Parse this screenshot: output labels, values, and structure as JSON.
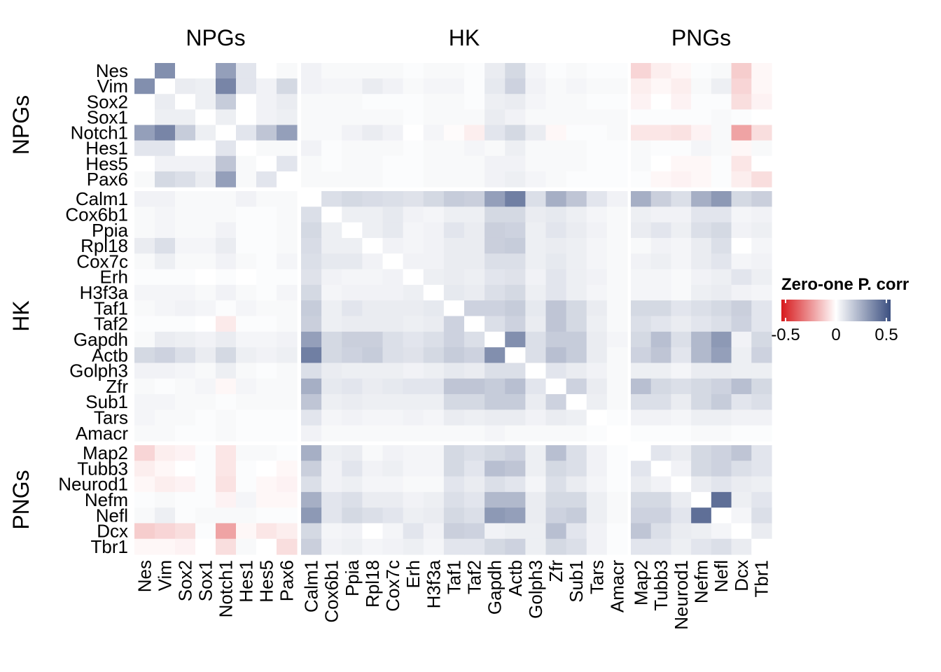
{
  "chart_data": {
    "type": "heatmap",
    "title": "",
    "group_labels": [
      "NPGs",
      "HK",
      "PNGs"
    ],
    "groups": [
      {
        "name": "NPGs",
        "genes": [
          "Nes",
          "Vim",
          "Sox2",
          "Sox1",
          "Notch1",
          "Hes1",
          "Hes5",
          "Pax6"
        ]
      },
      {
        "name": "HK",
        "genes": [
          "Calm1",
          "Cox6b1",
          "Ppia",
          "Rpl18",
          "Cox7c",
          "Erh",
          "H3f3a",
          "Taf1",
          "Taf2",
          "Gapdh",
          "Actb",
          "Golph3",
          "Zfr",
          "Sub1",
          "Tars",
          "Amacr"
        ]
      },
      {
        "name": "PNGs",
        "genes": [
          "Map2",
          "Tubb3",
          "Neurod1",
          "Nefm",
          "Nefl",
          "Dcx",
          "Tbr1"
        ]
      }
    ],
    "legend": {
      "title": "Zero-one P. corr",
      "ticks": [
        "-0.5",
        "0",
        "0.5"
      ],
      "range": [
        -0.55,
        0.55
      ],
      "colors": {
        "low": "#d7191c",
        "mid": "#ffffff",
        "high": "#3b4f80"
      }
    },
    "values": [
      [
        0,
        0.35,
        0,
        0,
        0.3,
        0.08,
        0,
        0.02,
        0.04,
        0.02,
        0.02,
        0.02,
        0.02,
        0.01,
        0.02,
        0.02,
        0.01,
        0.06,
        0.12,
        0.03,
        0.01,
        0.02,
        0.01,
        0.01,
        -0.1,
        -0.04,
        -0.02,
        0.01,
        0.02,
        -0.12,
        -0.02
      ],
      [
        0.35,
        0,
        0.06,
        0.05,
        0.38,
        0.08,
        0.04,
        0.12,
        0.04,
        0.03,
        0.03,
        0.06,
        0.04,
        0.02,
        0.03,
        0.03,
        0.01,
        0.07,
        0.14,
        0.04,
        0.02,
        0.03,
        0.02,
        0.02,
        -0.04,
        -0.02,
        -0.04,
        0.02,
        0.05,
        -0.1,
        -0.02
      ],
      [
        0,
        0.06,
        0,
        0.05,
        0.16,
        0,
        0.04,
        0.06,
        0.02,
        0.02,
        0.02,
        0.01,
        0.01,
        0.01,
        0.02,
        0.02,
        0.01,
        0.05,
        0.06,
        0.03,
        0.02,
        0.02,
        0.01,
        0.01,
        -0.03,
        0,
        -0.03,
        0.01,
        0.01,
        -0.08,
        -0.03
      ],
      [
        0,
        0.05,
        0.05,
        0,
        0.05,
        0,
        0.04,
        0.05,
        0.02,
        0.02,
        0.02,
        0.02,
        0.02,
        0.01,
        0.02,
        0.02,
        0.02,
        0.06,
        0.04,
        0.02,
        0.02,
        0.02,
        0.02,
        0.02,
        0.01,
        0.01,
        0.01,
        0.01,
        0.02,
        0.01,
        0
      ],
      [
        0.3,
        0.38,
        0.16,
        0.05,
        0,
        0.08,
        0.18,
        0.3,
        0.02,
        0.02,
        0.04,
        0.06,
        0.04,
        0,
        0.03,
        -0.01,
        -0.04,
        0.08,
        0.12,
        0.06,
        -0.02,
        0.01,
        0.01,
        0.02,
        -0.06,
        -0.06,
        -0.07,
        -0.03,
        0.02,
        -0.22,
        -0.08
      ],
      [
        0.08,
        0.08,
        0,
        0,
        0.08,
        0,
        0.02,
        0.02,
        0.04,
        0.01,
        0.02,
        0.02,
        0.02,
        0.01,
        0.02,
        0.02,
        0.03,
        0.02,
        0.05,
        0.02,
        0.02,
        0.02,
        0.01,
        0.01,
        0.02,
        0.01,
        0.01,
        0.03,
        0.02,
        -0.02,
        0.02
      ],
      [
        0,
        0.04,
        0.04,
        0.04,
        0.18,
        0.02,
        0,
        0.08,
        0.02,
        0.01,
        0.02,
        0.02,
        0.01,
        0.01,
        0.02,
        0.02,
        0.02,
        0.04,
        0.04,
        0.02,
        0.02,
        0.02,
        0.01,
        0.01,
        0.02,
        0,
        -0.02,
        -0.02,
        0.01,
        -0.06,
        0
      ],
      [
        0.02,
        0.12,
        0.1,
        0.06,
        0.3,
        0.02,
        0.08,
        0,
        0.02,
        0.02,
        0.02,
        0.02,
        0.01,
        0.01,
        0.02,
        0.02,
        0.02,
        0.04,
        0.05,
        0.03,
        0.02,
        0.01,
        0.01,
        0.01,
        0.01,
        -0.02,
        -0.03,
        -0.02,
        0.01,
        -0.04,
        -0.08
      ],
      [
        0.04,
        0.04,
        0.02,
        0.02,
        0.02,
        0.04,
        0.02,
        0.02,
        0,
        0.1,
        0.12,
        0.11,
        0.1,
        0.09,
        0.12,
        0.16,
        0.15,
        0.3,
        0.4,
        0.1,
        0.25,
        0.18,
        0.08,
        0.04,
        0.25,
        0.15,
        0.1,
        0.25,
        0.32,
        0.12,
        0.15
      ],
      [
        0.02,
        0.03,
        0.02,
        0.02,
        0.02,
        0.01,
        0.01,
        0.02,
        0.1,
        0,
        0.05,
        0.05,
        0.07,
        0.04,
        0.03,
        0.05,
        0.05,
        0.12,
        0.12,
        0.06,
        0.07,
        0.05,
        0.03,
        0.02,
        0.05,
        0.04,
        0.04,
        0.08,
        0.08,
        0.03,
        0.04
      ],
      [
        0.02,
        0.03,
        0.02,
        0.02,
        0.04,
        0.01,
        0.01,
        0.02,
        0.12,
        0.05,
        0,
        0.05,
        0.07,
        0.03,
        0.04,
        0.08,
        0.06,
        0.15,
        0.14,
        0.05,
        0.08,
        0.06,
        0.04,
        0.02,
        0.06,
        0.08,
        0.05,
        0.1,
        0.12,
        0.04,
        0.05
      ],
      [
        0.06,
        0.1,
        0.03,
        0.03,
        0.06,
        0.01,
        0.01,
        0.02,
        0.11,
        0.05,
        0.05,
        0,
        0.04,
        0.03,
        0.04,
        0.06,
        0.06,
        0.15,
        0.16,
        0.05,
        0.06,
        0.05,
        0.03,
        0.02,
        0.02,
        0.04,
        0.03,
        0.06,
        0.1,
        0,
        0.03
      ],
      [
        0.02,
        0.05,
        0.02,
        0.02,
        0.04,
        0.02,
        0.01,
        0.03,
        0.1,
        0.07,
        0.07,
        0.04,
        0,
        0.04,
        0.04,
        0.06,
        0.06,
        0.1,
        0.1,
        0.05,
        0.07,
        0.05,
        0.03,
        0.02,
        0.04,
        0.05,
        0.03,
        0.06,
        0.08,
        0.03,
        0.04
      ],
      [
        0.01,
        0.01,
        0.01,
        0,
        0.01,
        0,
        0.01,
        0.01,
        0.09,
        0.04,
        0.03,
        0.03,
        0.04,
        0,
        0.05,
        0.06,
        0.05,
        0.08,
        0.09,
        0.04,
        0.08,
        0.05,
        0.04,
        0.02,
        0.03,
        0.03,
        0.02,
        0.04,
        0.05,
        0.08,
        0.05
      ],
      [
        0.03,
        0.03,
        0.03,
        0.02,
        0.04,
        0.02,
        0.01,
        0.03,
        0.12,
        0.03,
        0.04,
        0.04,
        0.04,
        0.05,
        0,
        0.07,
        0.06,
        0.1,
        0.12,
        0.05,
        0.08,
        0.05,
        0.03,
        0.02,
        0.03,
        0.03,
        0.02,
        0.05,
        0.06,
        0.04,
        0.03
      ],
      [
        0.02,
        0.03,
        0.04,
        0.03,
        0.01,
        0.03,
        0.02,
        0.02,
        0.16,
        0.05,
        0.08,
        0.06,
        0.06,
        0.06,
        0.07,
        0,
        0.14,
        0.14,
        0.16,
        0.07,
        0.18,
        0.12,
        0.06,
        0.02,
        0.12,
        0.12,
        0.08,
        0.1,
        0.12,
        0.15,
        0.08
      ],
      [
        0.01,
        0.01,
        0.01,
        0,
        -0.05,
        0.01,
        0.01,
        0.02,
        0.15,
        0.05,
        0.06,
        0.06,
        0.06,
        0.05,
        0.06,
        0.14,
        0,
        0.1,
        0.14,
        0.06,
        0.18,
        0.12,
        0.05,
        0.02,
        0.1,
        0.08,
        0.06,
        0.08,
        0.1,
        0.14,
        0.08
      ],
      [
        0.02,
        0.06,
        0.05,
        0.04,
        0.06,
        0.03,
        0.03,
        0.04,
        0.3,
        0.12,
        0.15,
        0.15,
        0.1,
        0.08,
        0.1,
        0.14,
        0.1,
        0,
        0.35,
        0.1,
        0.16,
        0.16,
        0.06,
        0.03,
        0.12,
        0.2,
        0.1,
        0.22,
        0.32,
        0.04,
        0.12
      ],
      [
        0.12,
        0.14,
        0.1,
        0.06,
        0.12,
        0.05,
        0.04,
        0.05,
        0.4,
        0.12,
        0.14,
        0.16,
        0.1,
        0.09,
        0.12,
        0.16,
        0.14,
        0.35,
        0,
        0.1,
        0.2,
        0.16,
        0.06,
        0.02,
        0.14,
        0.18,
        0.08,
        0.22,
        0.3,
        0.05,
        0.14
      ],
      [
        0.04,
        0.04,
        0.03,
        0.02,
        0.05,
        0.02,
        0.01,
        0.02,
        0.1,
        0.06,
        0.05,
        0.05,
        0.05,
        0.04,
        0.05,
        0.07,
        0.06,
        0.1,
        0.1,
        0,
        0.08,
        0.06,
        0.04,
        0.02,
        0.05,
        0.05,
        0.03,
        0.06,
        0.06,
        0.05,
        0.05
      ],
      [
        0.02,
        0.01,
        0.02,
        0.03,
        -0.02,
        0.03,
        0.02,
        0.02,
        0.25,
        0.07,
        0.08,
        0.06,
        0.07,
        0.08,
        0.08,
        0.18,
        0.18,
        0.16,
        0.2,
        0.08,
        0,
        0.14,
        0.06,
        0.02,
        0.2,
        0.12,
        0.1,
        0.12,
        0.14,
        0.2,
        0.12
      ],
      [
        0.03,
        0.03,
        0.02,
        0.02,
        0.01,
        0.02,
        0.02,
        0.02,
        0.18,
        0.05,
        0.06,
        0.05,
        0.05,
        0.05,
        0.05,
        0.12,
        0.12,
        0.16,
        0.16,
        0.06,
        0.14,
        0,
        0.05,
        0.02,
        0.1,
        0.1,
        0.06,
        0.12,
        0.16,
        0.08,
        0.1
      ],
      [
        0.03,
        0.02,
        0.02,
        0.01,
        0.02,
        0.01,
        0.01,
        0.01,
        0.08,
        0.03,
        0.04,
        0.03,
        0.03,
        0.04,
        0.03,
        0.06,
        0.05,
        0.06,
        0.06,
        0.04,
        0.06,
        0.05,
        0,
        0.01,
        0.04,
        0.04,
        0.03,
        0.05,
        0.05,
        0.04,
        0.04
      ],
      [
        0.02,
        0.02,
        0.01,
        0.01,
        0.02,
        0.01,
        0.01,
        0.01,
        0.04,
        0.02,
        0.02,
        0.02,
        0.02,
        0.02,
        0.02,
        0.02,
        0.02,
        0.03,
        0.02,
        0.02,
        0.02,
        0.02,
        0.01,
        0,
        0.01,
        0.01,
        0.01,
        0.02,
        0.02,
        0.01,
        0.01
      ],
      [
        -0.1,
        -0.04,
        -0.03,
        0.01,
        -0.06,
        0.02,
        0.02,
        0.01,
        0.25,
        0.05,
        0.06,
        0.02,
        0.04,
        0.03,
        0.03,
        0.12,
        0.1,
        0.12,
        0.14,
        0.05,
        0.2,
        0.1,
        0.04,
        0.01,
        0,
        0.08,
        0.06,
        0.12,
        0.14,
        0.18,
        0.08
      ],
      [
        -0.04,
        -0.02,
        0,
        0.01,
        -0.06,
        0.01,
        0,
        -0.02,
        0.15,
        0.04,
        0.08,
        0.04,
        0.05,
        0.03,
        0.03,
        0.12,
        0.08,
        0.2,
        0.18,
        0.05,
        0.12,
        0.1,
        0.04,
        0.01,
        0.08,
        0,
        0.04,
        0.12,
        0.14,
        0.1,
        0.08
      ],
      [
        -0.02,
        -0.04,
        -0.03,
        0.01,
        -0.07,
        0.01,
        -0.02,
        -0.03,
        0.1,
        0.04,
        0.05,
        0.03,
        0.03,
        0.02,
        0.02,
        0.08,
        0.06,
        0.1,
        0.08,
        0.03,
        0.1,
        0.06,
        0.03,
        0.01,
        0.06,
        0.04,
        0,
        0.06,
        0.08,
        0.06,
        0.05
      ],
      [
        0.01,
        0.02,
        0.01,
        0.01,
        -0.03,
        0.03,
        -0.02,
        -0.02,
        0.25,
        0.08,
        0.1,
        0.06,
        0.06,
        0.04,
        0.05,
        0.1,
        0.08,
        0.22,
        0.22,
        0.06,
        0.12,
        0.12,
        0.05,
        0.02,
        0.12,
        0.12,
        0.06,
        0,
        0.45,
        0.05,
        0.08
      ],
      [
        0.02,
        0.05,
        0.01,
        0.02,
        0.02,
        0.02,
        0.01,
        0.01,
        0.32,
        0.08,
        0.12,
        0.1,
        0.08,
        0.05,
        0.06,
        0.12,
        0.1,
        0.32,
        0.3,
        0.06,
        0.14,
        0.16,
        0.05,
        0.02,
        0.14,
        0.14,
        0.08,
        0.45,
        0,
        0.03,
        0.1
      ],
      [
        -0.12,
        -0.1,
        -0.08,
        0.01,
        -0.22,
        -0.02,
        -0.06,
        -0.04,
        0.12,
        0.03,
        0.04,
        0,
        0.03,
        0.08,
        0.04,
        0.15,
        0.14,
        0.04,
        0.05,
        0.05,
        0.2,
        0.08,
        0.04,
        0.01,
        0.18,
        0.1,
        0.06,
        0.05,
        0.03,
        0,
        0.06
      ],
      [
        -0.02,
        -0.02,
        -0.03,
        0,
        -0.08,
        0.02,
        0,
        -0.08,
        0.15,
        0.04,
        0.05,
        0.03,
        0.04,
        0.05,
        0.03,
        0.08,
        0.08,
        0.12,
        0.14,
        0.05,
        0.12,
        0.1,
        0.04,
        0.01,
        0.08,
        0.08,
        0.05,
        0.08,
        0.1,
        0.06,
        0
      ]
    ]
  }
}
